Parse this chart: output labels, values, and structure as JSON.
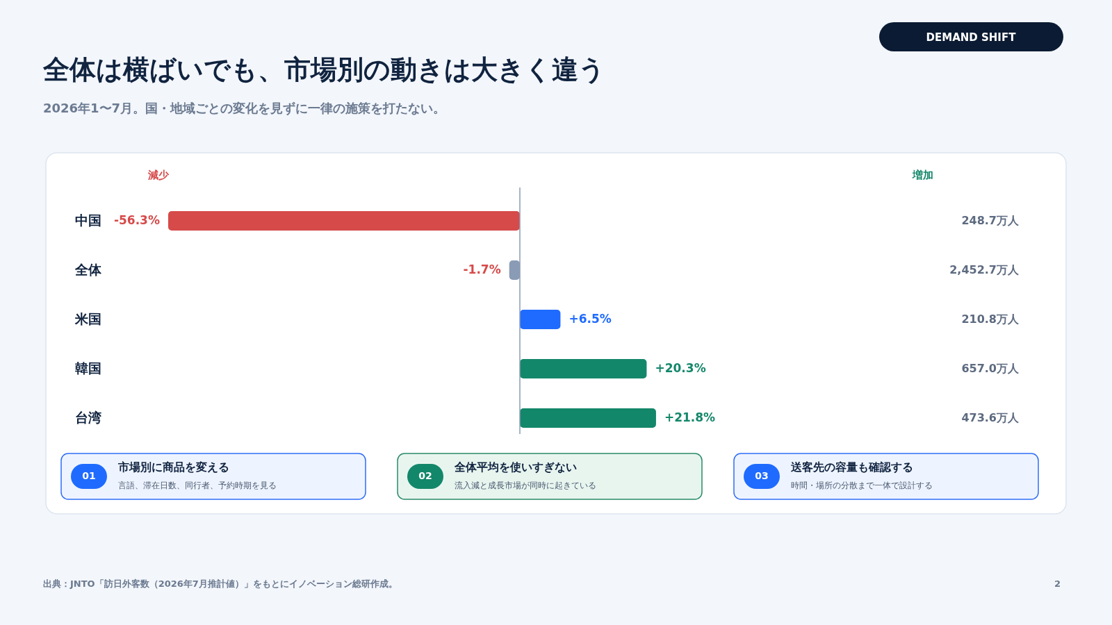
{
  "chart_data": {
    "type": "bar",
    "orientation": "horizontal",
    "title": "全体は横ばいでも、市場別の動きは大きく違う",
    "subtitle": "2026年1〜7月。国・地域ごとの変化を見ずに一律の施策を打たない。",
    "categories": [
      "中国",
      "全体",
      "米国",
      "韓国",
      "台湾"
    ],
    "values": [
      -56.3,
      -1.7,
      6.5,
      20.3,
      21.8
    ],
    "value_labels": [
      "-56.3%",
      "-1.7%",
      "+6.5%",
      "+20.3%",
      "+21.8%"
    ],
    "colors": [
      "#d64a4a",
      "#8a9bb5",
      "#1f6bff",
      "#13876a",
      "#13876a"
    ],
    "ref_lines": [
      {
        "axis": "x",
        "value": 0,
        "color": "#8a9bb5"
      }
    ],
    "annotations": [
      "DEMAND SHIFT",
      "減少",
      "増加",
      "248.7万人",
      "2,452.7万人",
      "210.8万人",
      "657.0万人",
      "473.6万人",
      "01",
      "市場別に商品を変える",
      "言語、滞在日数、同行者、予約時期を見る",
      "02",
      "全体平均を使いすぎない",
      "流入減と成長市場が同時に起きている",
      "03",
      "送客先の容量も確認する",
      "時間・場所の分散まで一体で設計する",
      "出典：JNTO「訪日外客数（2026年7月推計値）」をもとにイノベーション総研作成。",
      "2"
    ]
  }
}
